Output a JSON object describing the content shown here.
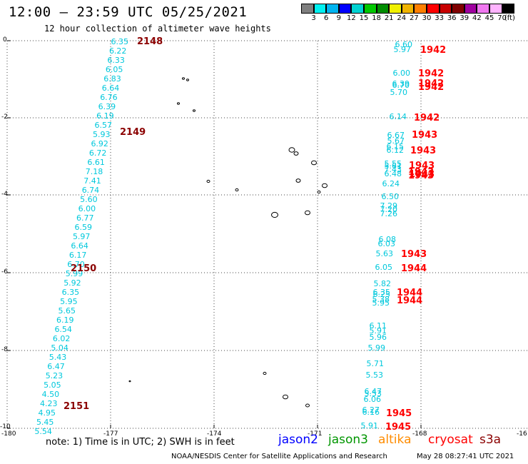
{
  "header": {
    "title": "12:00 — 23:59 UTC 05/25/2021",
    "subtitle": "12 hour collection of altimeter wave heights"
  },
  "colorbar": {
    "colors": [
      "#7f7f7f",
      "#00f0f0",
      "#00b4f0",
      "#0000ff",
      "#00d2d2",
      "#00c800",
      "#008c00",
      "#f0f000",
      "#f0b400",
      "#ff7f00",
      "#ff0000",
      "#c80000",
      "#7f0000",
      "#a000a0",
      "#f078f0",
      "#ffb4ff",
      "#000000"
    ],
    "labels": [
      "3",
      "6",
      "9",
      "12",
      "15",
      "18",
      "21",
      "24",
      "27",
      "30",
      "33",
      "36",
      "39",
      "42",
      "45",
      "70",
      "(ft)"
    ]
  },
  "axes": {
    "lon_ticks": [
      "-180",
      "-177",
      "-174",
      "-171",
      "-168",
      "-16"
    ],
    "lat_ticks": [
      "0",
      "-2",
      "-4",
      "-6",
      "-8",
      "-10"
    ]
  },
  "tracks": {
    "west": {
      "color": "#00c8dc",
      "heights": [
        "6.35",
        "6.22",
        "6.33",
        "6.05",
        "6.83",
        "6.64",
        "6.76",
        "6.39",
        "6.19",
        "6.57",
        "5.93",
        "6.92",
        "6.72",
        "6.61",
        "7.18",
        "7.41",
        "6.74",
        "5.60",
        "6.00",
        "6.77",
        "6.59",
        "5.97",
        "6.64",
        "6.17",
        "6.70",
        "5.99",
        "5.92",
        "6.35",
        "5.95",
        "5.65",
        "6.19",
        "6.54",
        "6.02",
        "5.04",
        "5.43",
        "6.47",
        "5.23",
        "5.05",
        "4.50",
        "4.23",
        "4.95",
        "5.45",
        "5.54"
      ],
      "times": [
        {
          "text": "2148",
          "color": "#8b0000"
        },
        {
          "text": "2149",
          "color": "#8b0000"
        },
        {
          "text": "2150",
          "color": "#8b0000"
        },
        {
          "text": "2151",
          "color": "#8b0000"
        }
      ]
    },
    "east": {
      "color": "#00c8dc",
      "heights": [
        "6.60",
        "5.97",
        "6.00",
        "6.39",
        "6.70",
        "5.70",
        "6.14",
        "6.67",
        "5.67",
        "6.15",
        "6.12",
        "5.55",
        "5.61",
        "7.43",
        "6.48",
        "6.24",
        "6.50",
        "7.29",
        "7.20",
        "7.26",
        "6.08",
        "6.03",
        "5.63",
        "6.05",
        "5.82",
        "6.35",
        "6.25",
        "5.38",
        "5.95",
        "6.11",
        "5.91",
        "5.96",
        "5.99",
        "5.71",
        "5.53",
        "6.47",
        "5.53",
        "6.06",
        "6.27",
        "6.16",
        "5.91"
      ],
      "times": [
        {
          "text": "1942"
        },
        {
          "text": "1942"
        },
        {
          "text": "1942"
        },
        {
          "text": "1942"
        },
        {
          "text": "1942"
        },
        {
          "text": "1943"
        },
        {
          "text": "1943"
        },
        {
          "text": "1943"
        },
        {
          "text": "1943"
        },
        {
          "text": "1943"
        },
        {
          "text": "1943"
        },
        {
          "text": "1943"
        },
        {
          "text": "1944"
        },
        {
          "text": "1944"
        },
        {
          "text": "1944"
        },
        {
          "text": "1945"
        },
        {
          "text": "1945"
        }
      ],
      "time_color": "#ff0000"
    }
  },
  "footer": {
    "note": "note:  1) Time is in UTC;  2) SWH is in feet",
    "credit": "NOAA/NESDIS Center for Satellite Applications and Research",
    "timestamp": "May 28 08:27:41 UTC 2021",
    "satellites": [
      {
        "name": "jason2",
        "color": "#0000ff"
      },
      {
        "name": "jason3",
        "color": "#009600"
      },
      {
        "name": "altika",
        "color": "#ff8c00"
      },
      {
        "name": "cryosat",
        "color": "#ff0000"
      },
      {
        "name": "s3a",
        "color": "#8b0000"
      }
    ]
  }
}
